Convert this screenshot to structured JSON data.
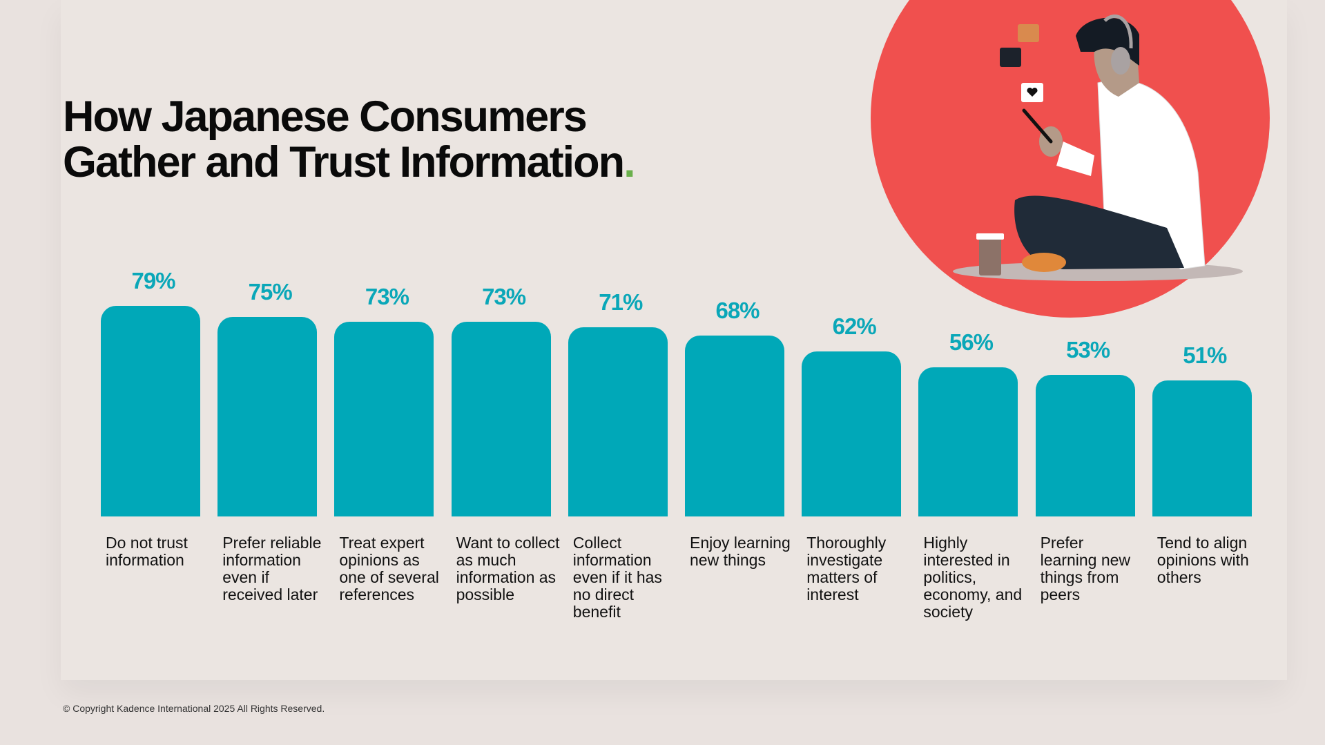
{
  "title": {
    "line1": "How Japanese Consumers",
    "line2": "Gather and Trust Information",
    "dot": "."
  },
  "colors": {
    "bar": "#00a8b8",
    "accent_dot": "#6ab04c",
    "circle": "#f0504e"
  },
  "footer": "© Copyright Kadence International 2025 All Rights Reserved.",
  "chart_data": {
    "type": "bar",
    "categories": [
      "Do not trust information",
      "Prefer reliable information even if received later",
      "Treat expert opinions as one of several references",
      "Want to collect as much information as possible",
      "Collect information even if it has no direct benefit",
      "Enjoy learning new things",
      "Thoroughly investigate matters of interest",
      "Highly interested in politics, economy, and society",
      "Prefer learning new things from peers",
      "Tend to align opinions with others"
    ],
    "values": [
      79,
      75,
      73,
      73,
      71,
      68,
      62,
      56,
      53,
      51
    ],
    "labels": [
      "79%",
      "75%",
      "73%",
      "73%",
      "71%",
      "68%",
      "62%",
      "56%",
      "53%",
      "51%"
    ],
    "unit": "%",
    "ylim": [
      0,
      100
    ],
    "grid": false
  }
}
